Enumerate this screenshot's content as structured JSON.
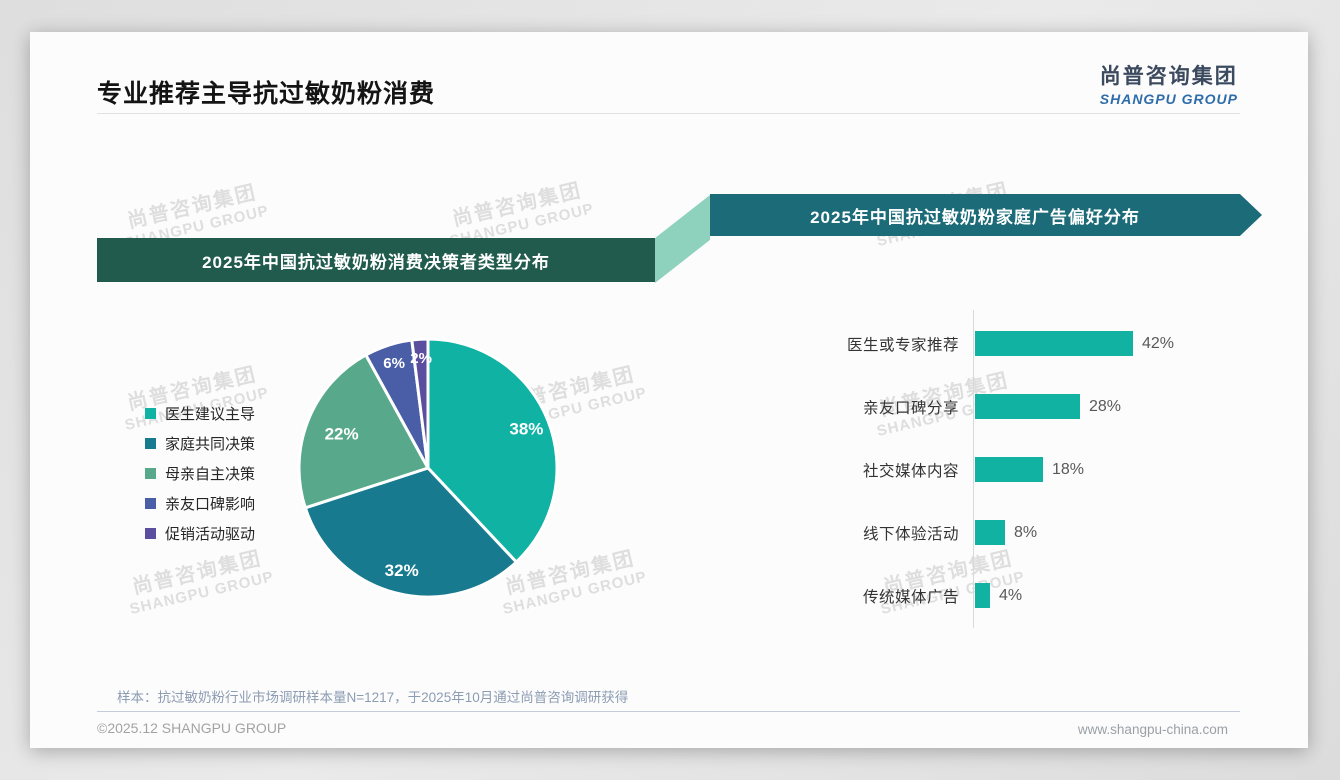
{
  "page": {
    "title": "专业推荐主导抗过敏奶粉消费",
    "logo": {
      "cn": "尚普咨询集团",
      "en": "SHANGPU GROUP"
    },
    "watermark": {
      "cn": "尚普咨询集团",
      "en": "SHANGPU GROUP"
    },
    "footnote": "样本：抗过敏奶粉行业市场调研样本量N=1217，于2025年10月通过尚普咨询调研获得",
    "copyright": "©2025.12 SHANGPU GROUP",
    "website": "www.shangpu-china.com"
  },
  "colors": {
    "banner_left_bg": "#215b4e",
    "banner_right_bg": "#1b6b78",
    "banner_connector": "#8ed1bc",
    "bar_teal": "#12b2a2",
    "logo_cn": "#3b4a5e",
    "logo_en": "#2e6daa"
  },
  "chart_data": [
    {
      "type": "pie",
      "title": "2025年中国抗过敏奶粉消费决策者类型分布",
      "labels": [
        "医生建议主导",
        "家庭共同决策",
        "母亲自主决策",
        "亲友口碑影响",
        "促销活动驱动"
      ],
      "values": [
        38,
        32,
        22,
        6,
        2
      ],
      "data_labels": [
        "38%",
        "32%",
        "22%",
        "6%",
        "2%"
      ],
      "unit": "%",
      "colors": [
        "#0fb2a3",
        "#177a8f",
        "#58a88c",
        "#4a5ea8",
        "#5b4e9e"
      ],
      "legend_position": "left",
      "start_angle_deg": -90,
      "direction": "clockwise"
    },
    {
      "type": "bar",
      "orientation": "horizontal",
      "title": "2025年中国抗过敏奶粉家庭广告偏好分布",
      "categories": [
        "医生或专家推荐",
        "亲友口碑分享",
        "社交媒体内容",
        "线下体验活动",
        "传统媒体广告"
      ],
      "values": [
        42,
        28,
        18,
        8,
        4
      ],
      "data_labels": [
        "42%",
        "28%",
        "18%",
        "8%",
        "4%"
      ],
      "unit": "%",
      "bar_color": "#12b2a2",
      "xlim": [
        0,
        45
      ],
      "grid": false
    }
  ]
}
